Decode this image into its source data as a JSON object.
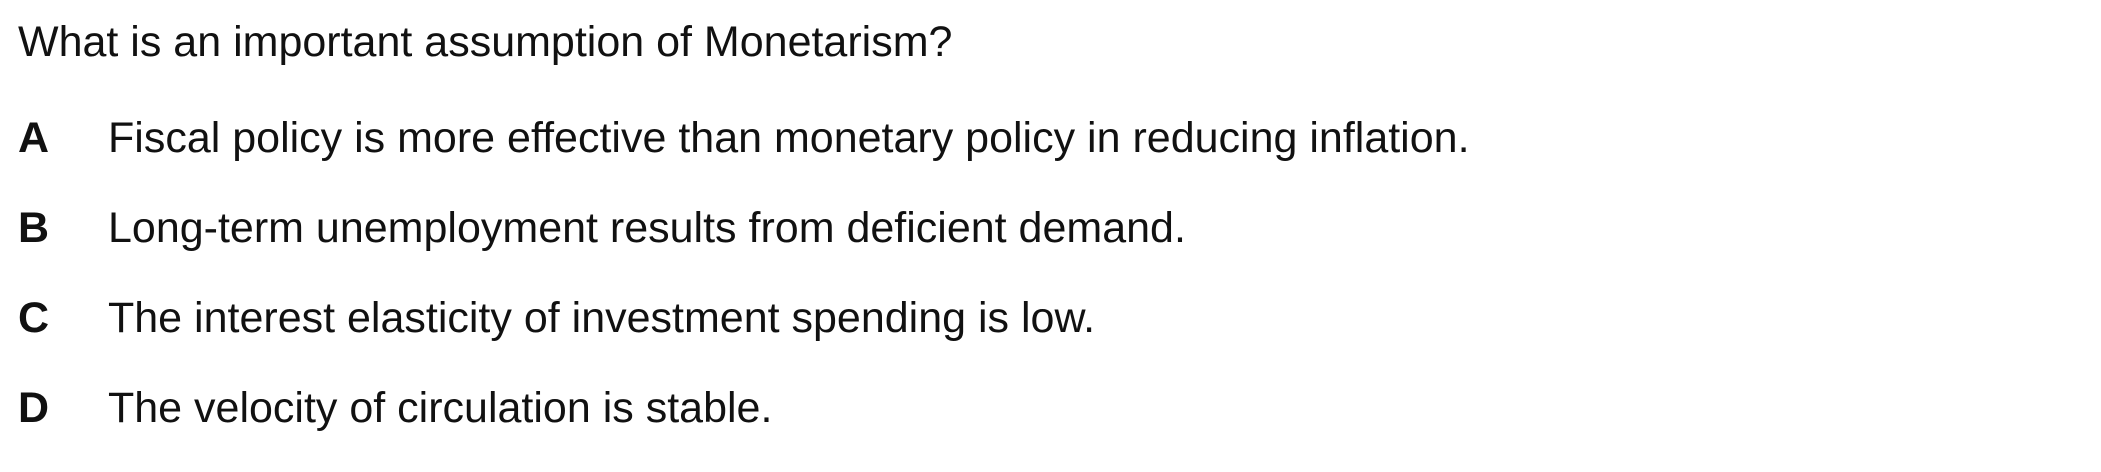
{
  "question": {
    "text": "What is an important assumption of Monetarism?"
  },
  "options": [
    {
      "letter": "A",
      "text": "Fiscal policy is more effective than monetary policy in reducing inflation."
    },
    {
      "letter": "B",
      "text": "Long-term unemployment results from deficient demand."
    },
    {
      "letter": "C",
      "text": "The interest elasticity of investment spending is low."
    },
    {
      "letter": "D",
      "text": "The velocity of circulation is stable."
    }
  ]
}
